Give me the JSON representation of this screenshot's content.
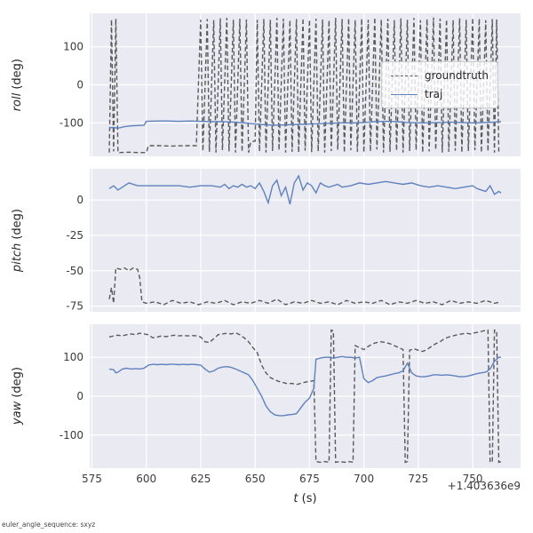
{
  "figure": {
    "xlabel": "t (s)",
    "xlabel_var": "t",
    "xlabel_unit": " (s)",
    "x_offset_text": "+1.403636e9",
    "footer_note": "euler_angle_sequence: sxyz",
    "colors": {
      "panel_background": "#eaeaf2",
      "grid": "#ffffff",
      "tick_label": "#3b3b3b",
      "text": "#262626",
      "groundtruth": "#5a5a5a",
      "traj": "#5f82bd"
    },
    "legend": {
      "position": "upper right of roll panel",
      "entries": [
        {
          "label": "groundtruth",
          "line_style": "dashed",
          "color": "#5a5a5a"
        },
        {
          "label": "traj",
          "line_style": "solid",
          "color": "#5f82bd"
        }
      ]
    }
  },
  "chart_data": [
    {
      "id": "roll",
      "type": "line",
      "ylabel": "roll (deg)",
      "ylabel_var": "roll",
      "ylabel_unit": " (deg)",
      "ylim": [
        -188,
        188
      ],
      "yticks": [
        -100,
        0,
        100
      ],
      "xlim": [
        574,
        772
      ],
      "xticks": [
        575,
        600,
        625,
        650,
        675,
        700,
        725,
        750
      ],
      "show_x_tick_labels": false,
      "grid": true,
      "series": [
        {
          "name": "groundtruth",
          "line_style": "dashed",
          "color": "#5a5a5a",
          "x": [
            583,
            584,
            585,
            586,
            587,
            588,
            592,
            596,
            600,
            601,
            606,
            612,
            618,
            623,
            625,
            626,
            628,
            629,
            631,
            632,
            634,
            635,
            637,
            638,
            640,
            641,
            643,
            644,
            646,
            647,
            648,
            650,
            651,
            652,
            654,
            655,
            657,
            658,
            660,
            661,
            663,
            664,
            666,
            667,
            669,
            670,
            672,
            673,
            675,
            676,
            678,
            679,
            681,
            682,
            684,
            685,
            687,
            688,
            690,
            691,
            693,
            694,
            696,
            697,
            699,
            700,
            702,
            703,
            705,
            706,
            708,
            709,
            711,
            712,
            714,
            715,
            717,
            718,
            720,
            721,
            723,
            724,
            726,
            727,
            729,
            730,
            732,
            733,
            735,
            736,
            738,
            739,
            741,
            742,
            744,
            745,
            747,
            748,
            750,
            751,
            753,
            754,
            756,
            757,
            759,
            760,
            761,
            762,
            763
          ],
          "y": [
            -178,
            172,
            -175,
            174,
            -178,
            -178,
            -177,
            -178,
            -178,
            -160,
            -160,
            -161,
            -160,
            -160,
            171,
            -174,
            173,
            -176,
            170,
            -178,
            175,
            -172,
            176,
            -175,
            171,
            -178,
            174,
            -176,
            172,
            -178,
            -150,
            -148,
            171,
            -175,
            173,
            -178,
            171,
            -174,
            176,
            -172,
            174,
            -178,
            170,
            -176,
            173,
            -178,
            175,
            -173,
            171,
            -177,
            174,
            -175,
            172,
            -178,
            170,
            -174,
            176,
            -171,
            173,
            -178,
            175,
            -172,
            170,
            -176,
            174,
            -178,
            171,
            -175,
            177,
            -170,
            172,
            -178,
            174,
            -176,
            170,
            -173,
            175,
            -178,
            171,
            -174,
            176,
            -172,
            170,
            -178,
            173,
            -175,
            177,
            -171,
            174,
            -178,
            172,
            -176,
            170,
            -173,
            175,
            -178,
            171,
            -174,
            176,
            -172,
            174,
            -178,
            170,
            -175,
            173,
            -178,
            172,
            -176,
            -178
          ]
        },
        {
          "name": "traj",
          "line_style": "solid",
          "color": "#5f82bd",
          "x": [
            583,
            585,
            587,
            590,
            593,
            596,
            599,
            600,
            605,
            610,
            615,
            620,
            625,
            630,
            635,
            640,
            645,
            650,
            655,
            660,
            665,
            670,
            675,
            680,
            685,
            690,
            695,
            700,
            705,
            710,
            715,
            720,
            725,
            730,
            735,
            740,
            745,
            750,
            755,
            760,
            763
          ],
          "y": [
            -113,
            -112,
            -114,
            -110,
            -108,
            -107,
            -106,
            -96,
            -95,
            -95,
            -96,
            -95,
            -96,
            -97,
            -97,
            -98,
            -100,
            -103,
            -105,
            -106,
            -105,
            -104,
            -103,
            -102,
            -101,
            -100,
            -100,
            -99,
            -97,
            -96,
            -97,
            -99,
            -100,
            -100,
            -99,
            -98,
            -99,
            -100,
            -99,
            -98,
            -97
          ]
        }
      ]
    },
    {
      "id": "pitch",
      "type": "line",
      "ylabel": "pitch (deg)",
      "ylabel_var": "pitch",
      "ylabel_unit": " (deg)",
      "ylim": [
        -79,
        22
      ],
      "yticks": [
        -75,
        -50,
        -25,
        0
      ],
      "xlim": [
        574,
        772
      ],
      "xticks": [
        575,
        600,
        625,
        650,
        675,
        700,
        725,
        750
      ],
      "show_x_tick_labels": false,
      "grid": true,
      "series": [
        {
          "name": "groundtruth",
          "line_style": "dashed",
          "color": "#5a5a5a",
          "x": [
            583,
            584,
            585,
            586,
            588,
            590,
            592,
            594,
            596,
            597,
            598,
            600,
            604,
            608,
            612,
            616,
            620,
            624,
            628,
            632,
            636,
            640,
            644,
            648,
            652,
            656,
            660,
            664,
            668,
            672,
            676,
            680,
            684,
            688,
            692,
            696,
            700,
            704,
            708,
            712,
            716,
            720,
            724,
            728,
            732,
            736,
            740,
            744,
            748,
            752,
            756,
            760,
            763
          ],
          "y": [
            -70,
            -62,
            -73,
            -48,
            -49,
            -48,
            -50,
            -48,
            -49,
            -55,
            -72,
            -73,
            -72,
            -74,
            -71,
            -73,
            -72,
            -74,
            -72,
            -73,
            -71,
            -74,
            -72,
            -73,
            -71,
            -73,
            -70,
            -74,
            -72,
            -73,
            -71,
            -73,
            -72,
            -74,
            -71,
            -73,
            -72,
            -73,
            -71,
            -74,
            -72,
            -73,
            -71,
            -73,
            -72,
            -74,
            -71,
            -73,
            -72,
            -73,
            -71,
            -73,
            -72
          ]
        },
        {
          "name": "traj",
          "line_style": "solid",
          "color": "#5f82bd",
          "x": [
            583,
            585,
            587,
            589,
            592,
            596,
            600,
            605,
            610,
            615,
            620,
            625,
            630,
            634,
            636,
            638,
            640,
            642,
            644,
            646,
            648,
            650,
            652,
            654,
            656,
            658,
            660,
            662,
            664,
            666,
            668,
            670,
            672,
            674,
            676,
            678,
            680,
            682,
            684,
            686,
            688,
            690,
            694,
            698,
            702,
            706,
            710,
            714,
            718,
            722,
            726,
            730,
            734,
            738,
            742,
            746,
            750,
            752,
            754,
            756,
            758,
            760,
            762,
            763
          ],
          "y": [
            8,
            10,
            7,
            9,
            12,
            10,
            10,
            10,
            10,
            10,
            9,
            10,
            10,
            9,
            11,
            8,
            10,
            9,
            11,
            9,
            10,
            8,
            12,
            6,
            -2,
            10,
            14,
            3,
            9,
            -3,
            12,
            17,
            7,
            12,
            10,
            5,
            12,
            10,
            9,
            10,
            11,
            9,
            10,
            12,
            11,
            12,
            13,
            12,
            11,
            12,
            10,
            9,
            10,
            9,
            8,
            9,
            10,
            8,
            7,
            6,
            10,
            4,
            6,
            5
          ]
        }
      ]
    },
    {
      "id": "yaw",
      "type": "line",
      "ylabel": "yaw (deg)",
      "ylabel_var": "yaw",
      "ylabel_unit": " (deg)",
      "ylim": [
        -185,
        185
      ],
      "yticks": [
        -100,
        0,
        100
      ],
      "xlim": [
        574,
        772
      ],
      "xticks": [
        575,
        600,
        625,
        650,
        675,
        700,
        725,
        750
      ],
      "show_x_tick_labels": true,
      "grid": true,
      "series": [
        {
          "name": "groundtruth",
          "line_style": "dashed",
          "color": "#5a5a5a",
          "x": [
            583,
            585,
            587,
            589,
            591,
            593,
            595,
            597,
            599,
            601,
            603,
            605,
            607,
            609,
            611,
            613,
            615,
            617,
            619,
            621,
            623,
            625,
            627,
            629,
            631,
            633,
            635,
            637,
            639,
            641,
            643,
            645,
            647,
            649,
            651,
            653,
            655,
            657,
            659,
            661,
            663,
            665,
            667,
            669,
            671,
            673,
            675,
            677,
            678,
            680,
            682,
            684,
            685,
            686,
            687,
            689,
            691,
            693,
            695,
            696,
            698,
            700,
            702,
            704,
            706,
            708,
            710,
            712,
            714,
            716,
            718,
            719,
            720,
            721,
            723,
            725,
            727,
            729,
            731,
            733,
            735,
            737,
            739,
            741,
            743,
            745,
            747,
            749,
            751,
            753,
            755,
            757,
            758,
            759,
            760,
            761,
            762,
            763
          ],
          "y": [
            152,
            155,
            157,
            155,
            158,
            160,
            158,
            162,
            160,
            158,
            150,
            152,
            155,
            153,
            155,
            157,
            155,
            156,
            155,
            156,
            155,
            152,
            140,
            138,
            148,
            158,
            160,
            162,
            160,
            163,
            158,
            150,
            140,
            125,
            112,
            80,
            60,
            48,
            42,
            38,
            35,
            32,
            33,
            30,
            33,
            36,
            38,
            40,
            -168,
            -170,
            -168,
            -170,
            170,
            168,
            -170,
            -168,
            -170,
            -168,
            -170,
            130,
            125,
            120,
            128,
            135,
            138,
            140,
            138,
            135,
            130,
            125,
            120,
            -170,
            -168,
            118,
            122,
            118,
            115,
            120,
            128,
            135,
            140,
            148,
            152,
            155,
            158,
            160,
            162,
            160,
            163,
            165,
            168,
            170,
            -170,
            -168,
            170,
            168,
            -170,
            -168
          ]
        },
        {
          "name": "traj",
          "line_style": "solid",
          "color": "#5f82bd",
          "x": [
            583,
            585,
            586,
            587,
            589,
            591,
            593,
            595,
            597,
            599,
            601,
            603,
            605,
            607,
            609,
            611,
            613,
            615,
            617,
            619,
            621,
            623,
            625,
            627,
            629,
            631,
            633,
            635,
            637,
            639,
            641,
            643,
            645,
            647,
            649,
            651,
            653,
            655,
            657,
            659,
            661,
            663,
            665,
            667,
            669,
            671,
            673,
            675,
            677,
            678,
            680,
            682,
            684,
            686,
            688,
            690,
            692,
            694,
            696,
            698,
            700,
            702,
            704,
            706,
            708,
            710,
            712,
            714,
            716,
            718,
            720,
            722,
            724,
            726,
            728,
            730,
            732,
            734,
            736,
            738,
            740,
            742,
            744,
            746,
            748,
            750,
            752,
            754,
            756,
            758,
            760,
            762,
            763
          ],
          "y": [
            70,
            68,
            60,
            62,
            70,
            72,
            70,
            71,
            70,
            72,
            80,
            82,
            81,
            82,
            81,
            82,
            82,
            81,
            82,
            81,
            82,
            81,
            80,
            70,
            62,
            65,
            72,
            75,
            76,
            74,
            70,
            65,
            60,
            55,
            40,
            20,
            0,
            -25,
            -40,
            -48,
            -50,
            -50,
            -48,
            -47,
            -45,
            -30,
            -15,
            -5,
            20,
            95,
            98,
            100,
            100,
            98,
            100,
            102,
            100,
            100,
            98,
            100,
            45,
            35,
            40,
            48,
            50,
            52,
            55,
            58,
            60,
            65,
            85,
            60,
            52,
            50,
            50,
            52,
            55,
            55,
            54,
            55,
            54,
            52,
            50,
            50,
            52,
            55,
            58,
            60,
            62,
            70,
            90,
            100,
            100
          ]
        }
      ]
    }
  ]
}
